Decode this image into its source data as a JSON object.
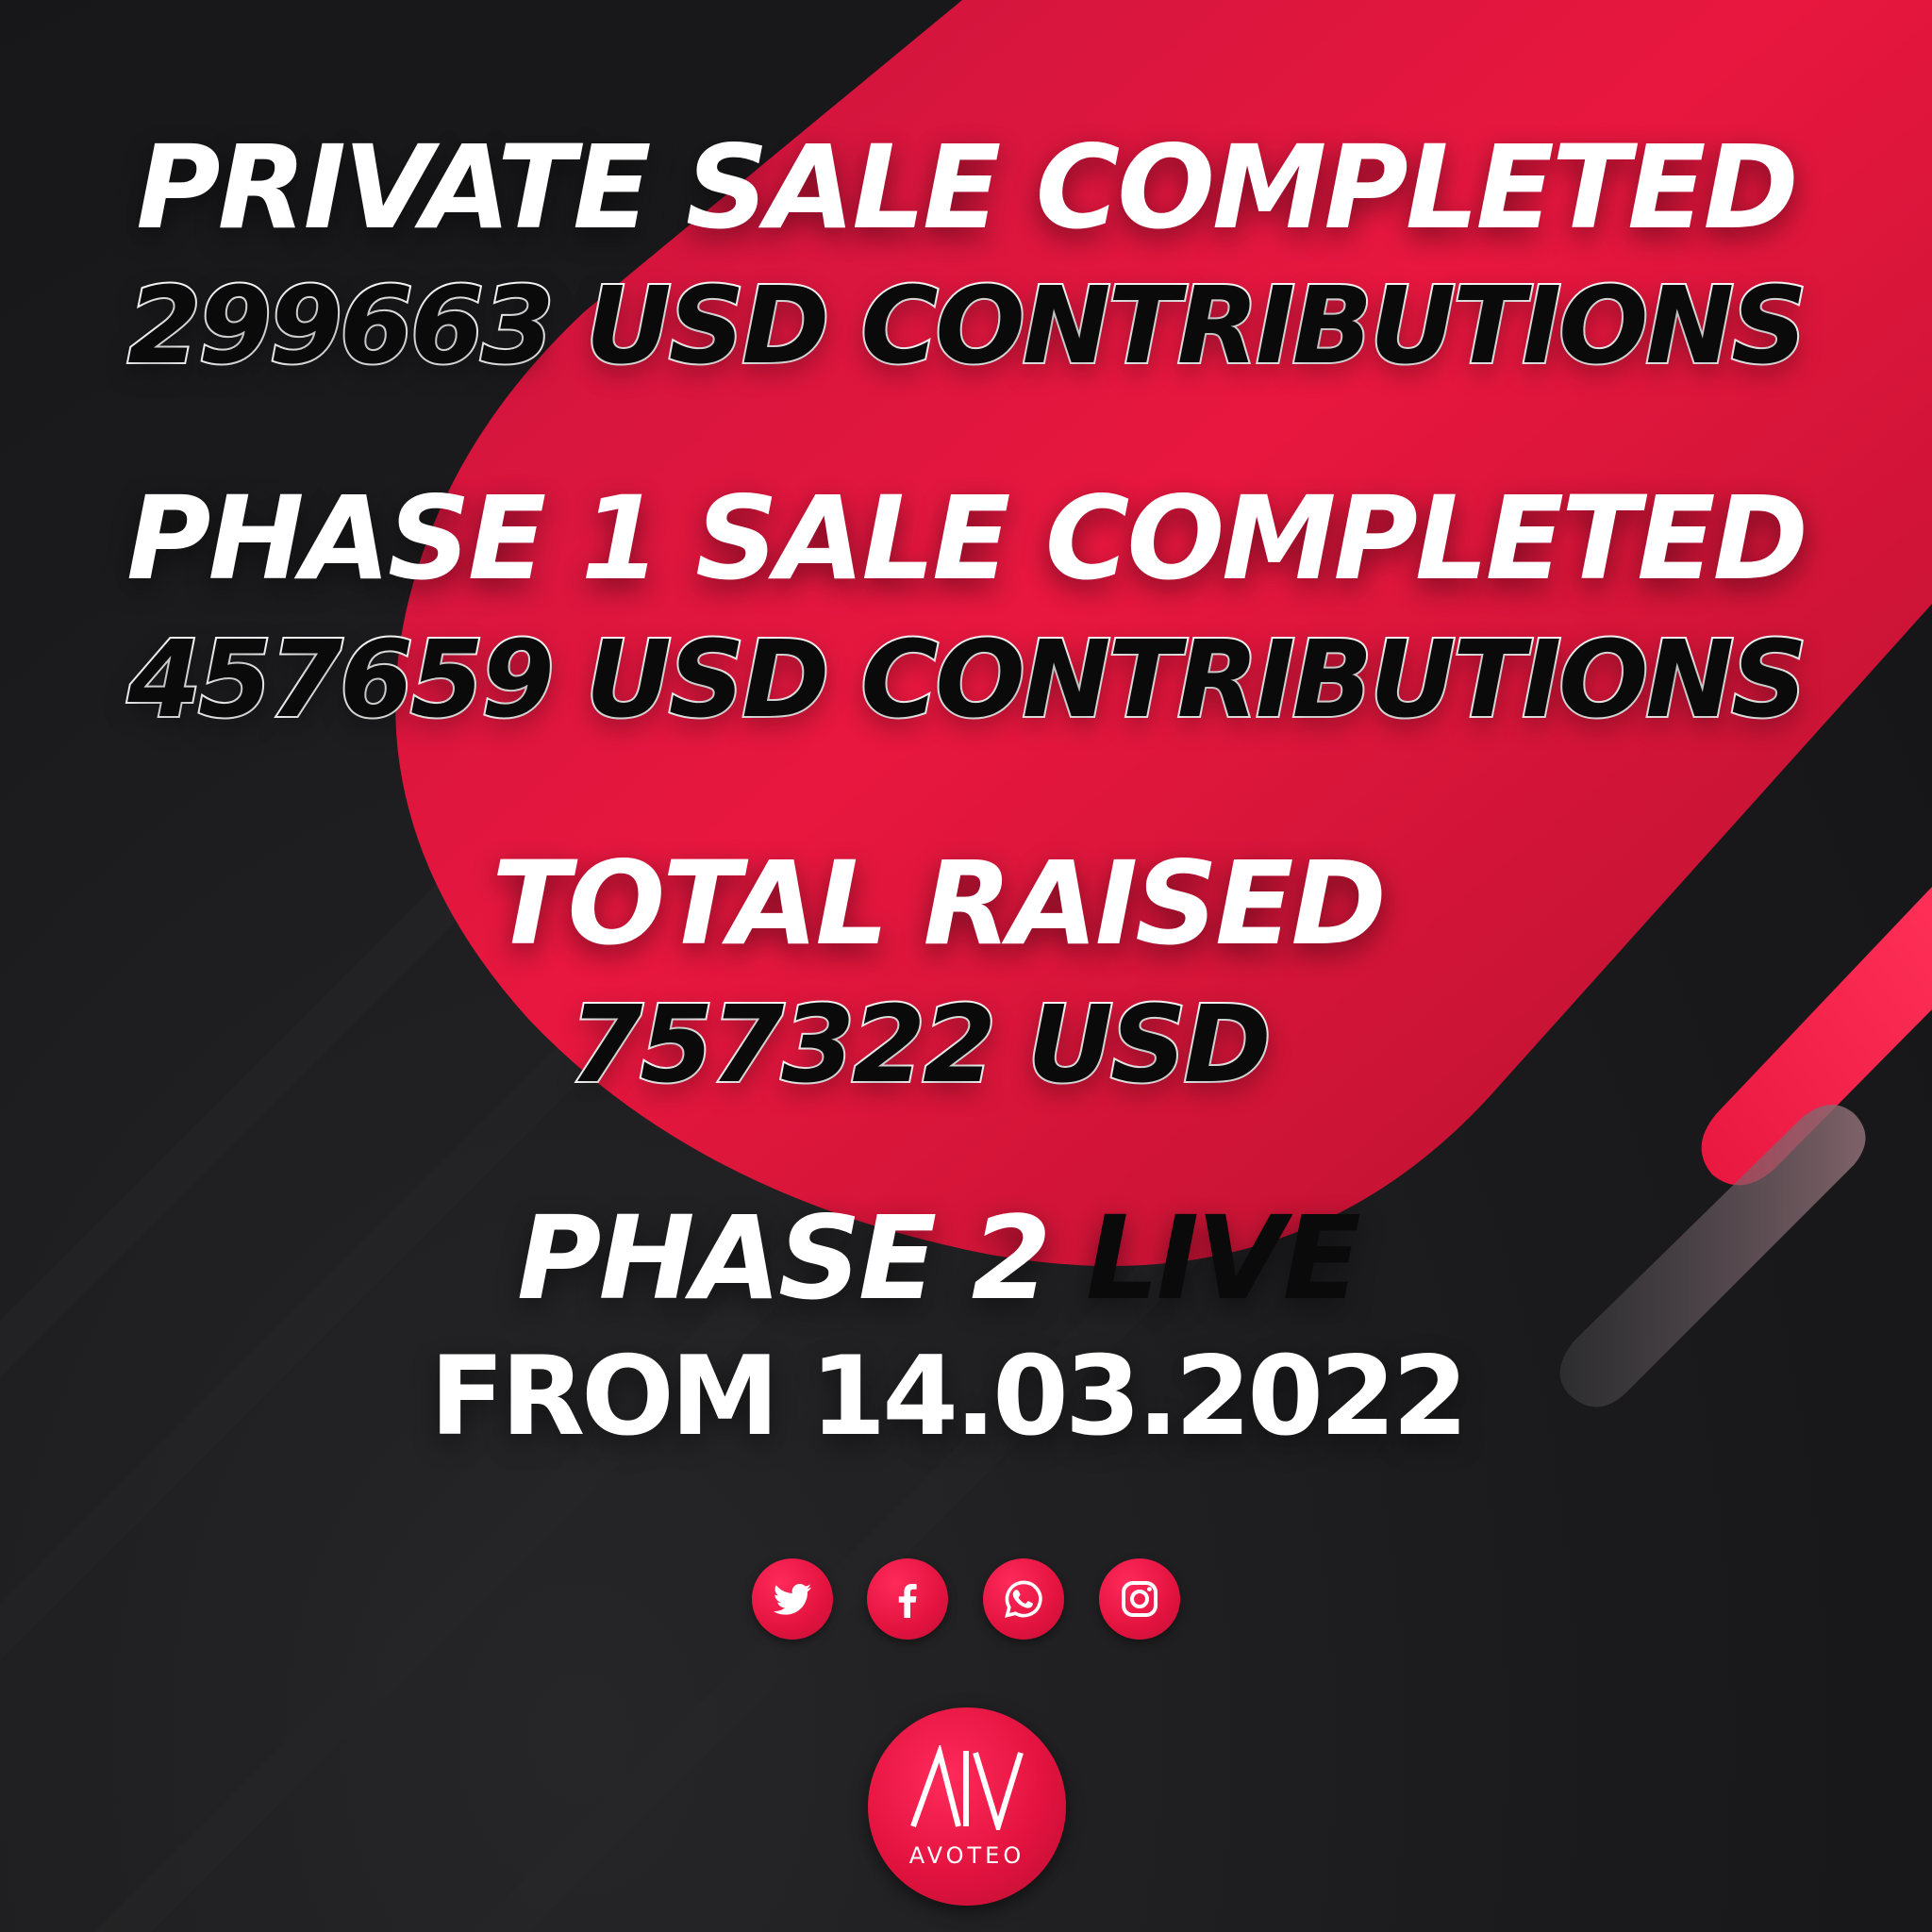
{
  "headline": {
    "private_sale": "PRIVATE SALE COMPLETED",
    "private_contrib": "299663 USD CONTRIBUTIONS",
    "phase1_sale": "PHASE 1 SALE COMPLETED",
    "phase1_contrib": "457659 USD CONTRIBUTIONS",
    "total_raised_label": "TOTAL RAISED",
    "total_raised_amount": "757322 USD",
    "phase2_prefix": "PHASE 2",
    "phase2_live": "LIVE",
    "phase2_from": "FROM 14.03.2022"
  },
  "social": {
    "icons": [
      "twitter-icon",
      "facebook-icon",
      "whatsapp-icon",
      "instagram-icon"
    ]
  },
  "brand": {
    "name": "AVOTEO",
    "accent_color": "#e8173f",
    "background_color": "#1b1b1d"
  }
}
